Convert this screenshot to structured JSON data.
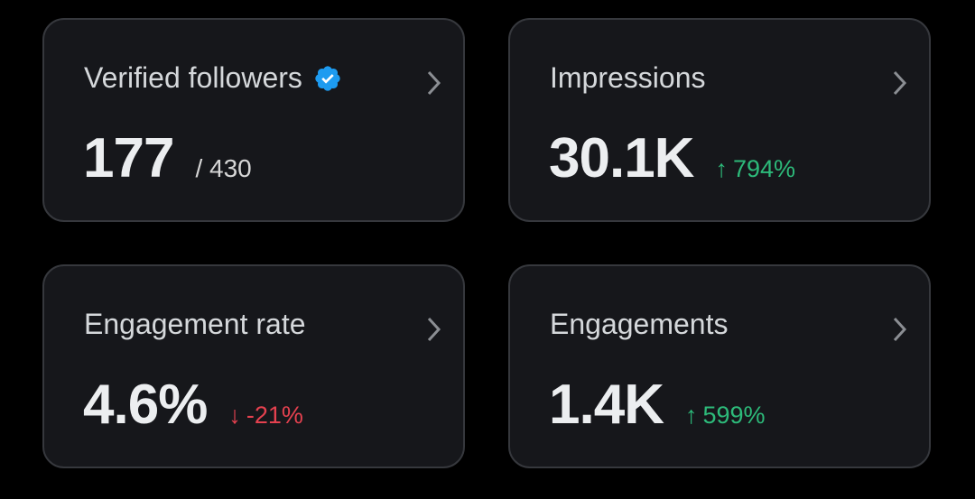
{
  "cards": [
    {
      "title": "Verified followers",
      "value": "177",
      "secondary": "/ 430"
    },
    {
      "title": "Impressions",
      "value": "30.1K",
      "arrow": "↑",
      "delta": "794%"
    },
    {
      "title": "Engagement rate",
      "value": "4.6%",
      "arrow": "↓",
      "delta": "-21%"
    },
    {
      "title": "Engagements",
      "value": "1.4K",
      "arrow": "↑",
      "delta": "599%"
    }
  ]
}
